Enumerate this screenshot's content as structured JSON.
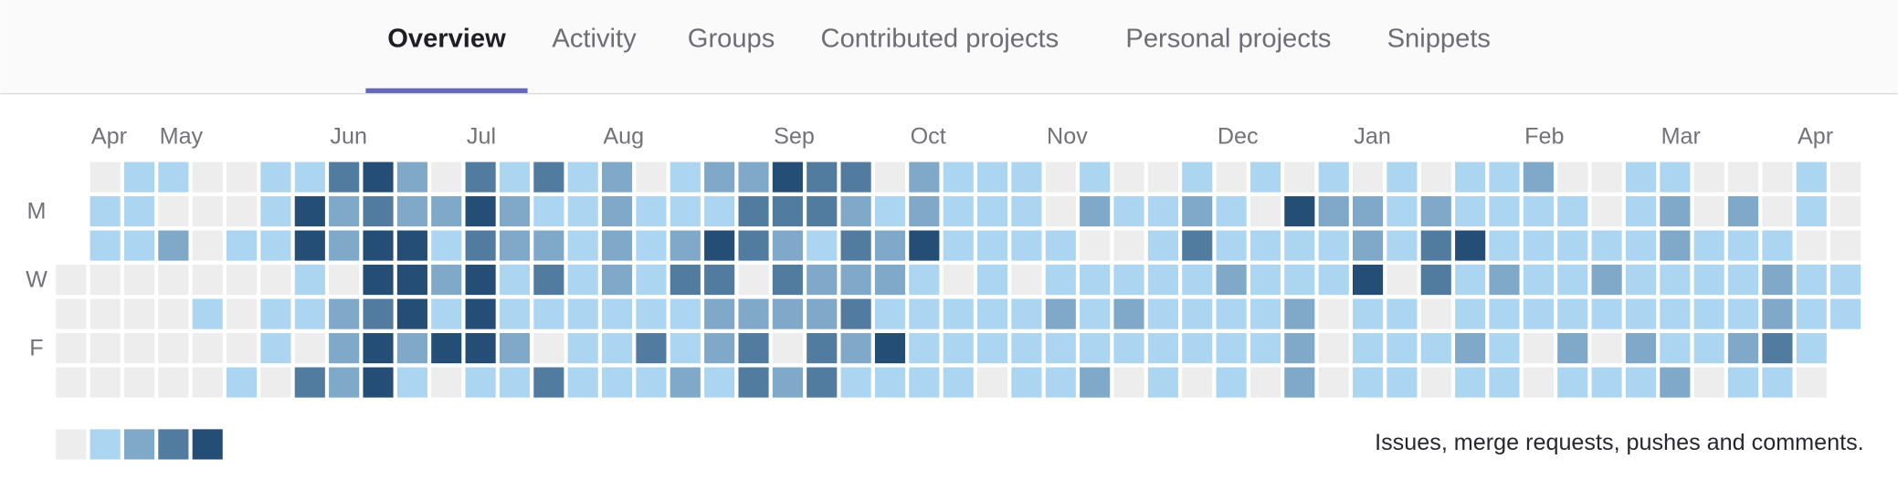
{
  "tabs": [
    "Overview",
    "Activity",
    "Groups",
    "Contributed projects",
    "Personal projects",
    "Snippets"
  ],
  "active_tab": 0,
  "calendar": {
    "colors": [
      "#ededed",
      "#acd5f2",
      "#7fa8c9",
      "#527ba0",
      "#254e77"
    ],
    "months": [
      {
        "label": "Apr",
        "week": 1
      },
      {
        "label": "May",
        "week": 3
      },
      {
        "label": "Jun",
        "week": 8
      },
      {
        "label": "Jul",
        "week": 12
      },
      {
        "label": "Aug",
        "week": 16
      },
      {
        "label": "Sep",
        "week": 21
      },
      {
        "label": "Oct",
        "week": 25
      },
      {
        "label": "Nov",
        "week": 29
      },
      {
        "label": "Dec",
        "week": 34
      },
      {
        "label": "Jan",
        "week": 38
      },
      {
        "label": "Feb",
        "week": 43
      },
      {
        "label": "Mar",
        "week": 47
      },
      {
        "label": "Apr",
        "week": 51
      }
    ],
    "days": [
      {
        "label": null,
        "levels": [
          null,
          0,
          1,
          1,
          0,
          0,
          1,
          1,
          3,
          4,
          2,
          0,
          3,
          1,
          3,
          1,
          2,
          0,
          1,
          2,
          2,
          4,
          3,
          3,
          0,
          2,
          1,
          1,
          1,
          0,
          1,
          0,
          0,
          1,
          0,
          1,
          0,
          1,
          0,
          1,
          0,
          1,
          1,
          2,
          0,
          0,
          1,
          1,
          0,
          0,
          0,
          1,
          0
        ]
      },
      {
        "label": "M",
        "levels": [
          null,
          1,
          1,
          0,
          0,
          0,
          1,
          4,
          2,
          3,
          2,
          2,
          4,
          2,
          1,
          1,
          2,
          1,
          1,
          1,
          3,
          3,
          3,
          2,
          1,
          2,
          1,
          1,
          1,
          0,
          2,
          1,
          1,
          2,
          1,
          0,
          4,
          2,
          2,
          1,
          2,
          1,
          1,
          1,
          1,
          0,
          1,
          2,
          0,
          2,
          0,
          1,
          0
        ]
      },
      {
        "label": null,
        "levels": [
          null,
          1,
          1,
          2,
          0,
          1,
          1,
          4,
          2,
          4,
          4,
          1,
          3,
          2,
          2,
          1,
          2,
          1,
          2,
          4,
          3,
          2,
          1,
          3,
          2,
          4,
          1,
          1,
          1,
          1,
          0,
          0,
          1,
          3,
          1,
          1,
          1,
          1,
          2,
          1,
          3,
          4,
          1,
          1,
          1,
          1,
          1,
          2,
          1,
          1,
          1,
          0,
          0
        ]
      },
      {
        "label": "W",
        "levels": [
          0,
          0,
          0,
          0,
          0,
          0,
          0,
          1,
          0,
          4,
          4,
          2,
          4,
          1,
          3,
          1,
          2,
          1,
          3,
          3,
          0,
          3,
          2,
          2,
          2,
          1,
          0,
          1,
          0,
          1,
          1,
          1,
          1,
          1,
          2,
          1,
          1,
          1,
          4,
          0,
          3,
          1,
          2,
          1,
          1,
          2,
          1,
          1,
          1,
          1,
          2,
          1,
          1
        ]
      },
      {
        "label": null,
        "levels": [
          0,
          0,
          0,
          0,
          1,
          0,
          1,
          1,
          2,
          3,
          4,
          1,
          4,
          1,
          1,
          1,
          1,
          1,
          1,
          2,
          2,
          2,
          2,
          3,
          1,
          1,
          1,
          1,
          1,
          2,
          1,
          2,
          1,
          1,
          1,
          1,
          2,
          0,
          1,
          1,
          0,
          1,
          1,
          1,
          1,
          1,
          1,
          1,
          1,
          1,
          2,
          1,
          1
        ]
      },
      {
        "label": "F",
        "levels": [
          0,
          0,
          0,
          0,
          0,
          0,
          1,
          0,
          2,
          4,
          2,
          4,
          4,
          2,
          0,
          1,
          1,
          3,
          1,
          2,
          3,
          0,
          3,
          2,
          4,
          1,
          1,
          1,
          1,
          1,
          1,
          1,
          1,
          1,
          1,
          1,
          2,
          0,
          1,
          1,
          1,
          2,
          1,
          0,
          2,
          0,
          2,
          1,
          1,
          2,
          3,
          1,
          null
        ]
      },
      {
        "label": null,
        "levels": [
          0,
          0,
          0,
          0,
          0,
          1,
          0,
          3,
          2,
          4,
          1,
          0,
          1,
          1,
          3,
          1,
          1,
          1,
          2,
          1,
          3,
          2,
          3,
          1,
          1,
          1,
          1,
          0,
          1,
          1,
          2,
          0,
          1,
          0,
          1,
          0,
          2,
          0,
          1,
          1,
          0,
          1,
          1,
          0,
          1,
          1,
          1,
          2,
          0,
          1,
          1,
          0,
          null
        ]
      }
    ],
    "legend_levels": [
      0,
      1,
      2,
      3,
      4
    ],
    "caption": "Issues, merge requests, pushes and comments."
  }
}
